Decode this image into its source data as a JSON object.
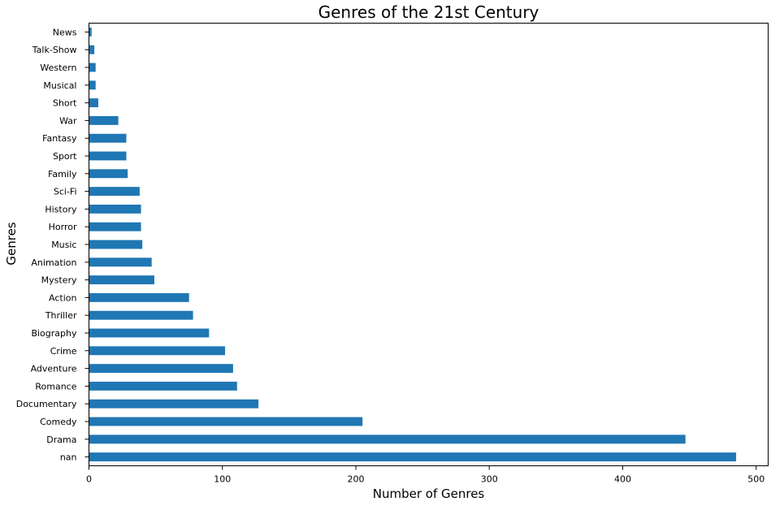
{
  "chart_data": {
    "type": "bar",
    "orientation": "horizontal",
    "title": "Genres of the 21st Century",
    "xlabel": "Number of Genres",
    "ylabel": "Genres",
    "categories": [
      "nan",
      "Drama",
      "Comedy",
      "Documentary",
      "Romance",
      "Adventure",
      "Crime",
      "Biography",
      "Thriller",
      "Action",
      "Mystery",
      "Animation",
      "Music",
      "Horror",
      "History",
      "Sci-Fi",
      "Family",
      "Sport",
      "Fantasy",
      "War",
      "Short",
      "Musical",
      "Western",
      "Talk-Show",
      "News"
    ],
    "values": [
      485,
      447,
      205,
      127,
      111,
      108,
      102,
      90,
      78,
      75,
      49,
      47,
      40,
      39,
      39,
      38,
      29,
      28,
      28,
      22,
      7,
      5,
      5,
      4,
      2
    ],
    "xlim": [
      0,
      509
    ],
    "xticks": [
      0,
      100,
      200,
      300,
      400,
      500
    ],
    "grid": false,
    "bar_color": "#1f77b4"
  }
}
